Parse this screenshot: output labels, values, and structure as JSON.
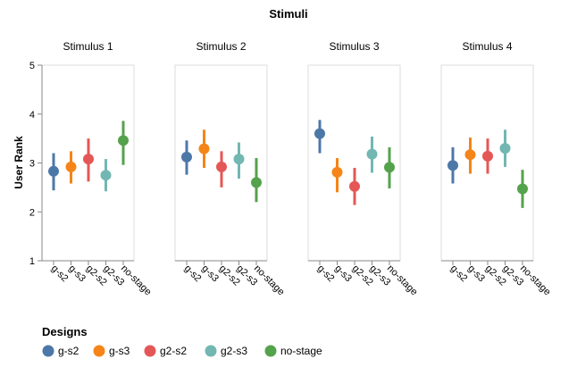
{
  "chart_data": {
    "type": "scatter",
    "title": "Stimuli",
    "ylabel": "User Rank",
    "ylim": [
      1,
      5
    ],
    "yticks": [
      "1",
      "2",
      "3",
      "4",
      "5"
    ],
    "grid": false,
    "legend": {
      "title": "Designs",
      "position": "bottom-left"
    },
    "categories": [
      "g-s2",
      "g-s3",
      "g2-s2",
      "g2-s3",
      "no-stage"
    ],
    "colors": {
      "g-s2": "#4c78a8",
      "g-s3": "#f58518",
      "g2-s2": "#e45756",
      "g2-s3": "#72b7b2",
      "no-stage": "#54a24b"
    },
    "panels": [
      {
        "title": "Stimulus 1",
        "points": [
          {
            "design": "g-s2",
            "mean": 2.83,
            "low": 2.44,
            "high": 3.2
          },
          {
            "design": "g-s3",
            "mean": 2.92,
            "low": 2.58,
            "high": 3.24
          },
          {
            "design": "g2-s2",
            "mean": 3.08,
            "low": 2.62,
            "high": 3.5
          },
          {
            "design": "g2-s3",
            "mean": 2.75,
            "low": 2.42,
            "high": 3.08
          },
          {
            "design": "no-stage",
            "mean": 3.46,
            "low": 2.96,
            "high": 3.86
          }
        ]
      },
      {
        "title": "Stimulus 2",
        "points": [
          {
            "design": "g-s2",
            "mean": 3.12,
            "low": 2.76,
            "high": 3.46
          },
          {
            "design": "g-s3",
            "mean": 3.29,
            "low": 2.9,
            "high": 3.68
          },
          {
            "design": "g2-s2",
            "mean": 2.92,
            "low": 2.5,
            "high": 3.24
          },
          {
            "design": "g2-s3",
            "mean": 3.08,
            "low": 2.68,
            "high": 3.42
          },
          {
            "design": "no-stage",
            "mean": 2.6,
            "low": 2.2,
            "high": 3.1
          }
        ]
      },
      {
        "title": "Stimulus 3",
        "points": [
          {
            "design": "g-s2",
            "mean": 3.6,
            "low": 3.2,
            "high": 3.88
          },
          {
            "design": "g-s3",
            "mean": 2.81,
            "low": 2.4,
            "high": 3.1
          },
          {
            "design": "g2-s2",
            "mean": 2.52,
            "low": 2.14,
            "high": 2.9
          },
          {
            "design": "g2-s3",
            "mean": 3.18,
            "low": 2.8,
            "high": 3.54
          },
          {
            "design": "no-stage",
            "mean": 2.91,
            "low": 2.48,
            "high": 3.32
          }
        ]
      },
      {
        "title": "Stimulus 4",
        "points": [
          {
            "design": "g-s2",
            "mean": 2.95,
            "low": 2.58,
            "high": 3.32
          },
          {
            "design": "g-s3",
            "mean": 3.17,
            "low": 2.78,
            "high": 3.52
          },
          {
            "design": "g2-s2",
            "mean": 3.14,
            "low": 2.78,
            "high": 3.5
          },
          {
            "design": "g2-s3",
            "mean": 3.3,
            "low": 2.92,
            "high": 3.68
          },
          {
            "design": "no-stage",
            "mean": 2.47,
            "low": 2.08,
            "high": 2.86
          }
        ]
      }
    ]
  }
}
